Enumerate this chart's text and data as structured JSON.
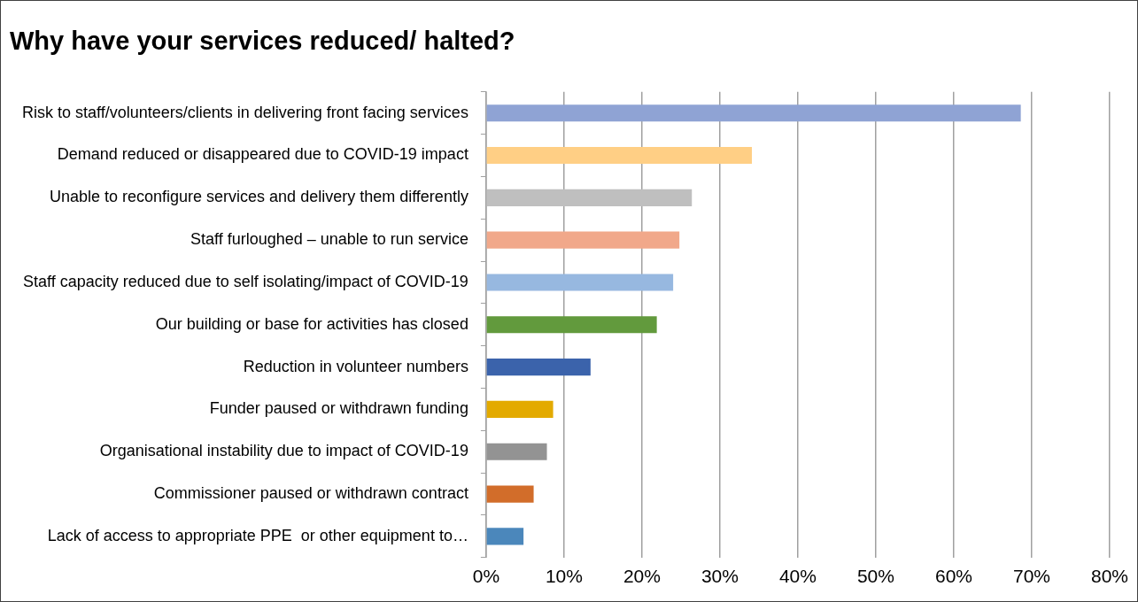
{
  "chart_data": {
    "type": "bar",
    "orientation": "horizontal",
    "title": "Why have your services reduced/ halted?",
    "categories": [
      "Risk to staff/volunteers/clients in delivering front facing services",
      "Demand reduced or disappeared due to COVID-19 impact",
      "Unable to reconfigure services and delivery them differently",
      "Staff furloughed – unable to run service",
      "Staff capacity reduced due to self isolating/impact of COVID-19",
      "Our building or base for activities has closed",
      "Reduction in volunteer numbers",
      "Funder paused or withdrawn funding",
      "Organisational instability due to impact of COVID-19",
      "Commissioner paused or withdrawn contract",
      "Lack of access to appropriate PPE  or other equipment to…"
    ],
    "values": [
      68.6,
      34.1,
      26.4,
      24.8,
      24.0,
      21.9,
      13.4,
      8.6,
      7.8,
      6.1,
      4.8
    ],
    "colors": [
      "#8fa3d4",
      "#ffcf85",
      "#bfbfbf",
      "#f1a88a",
      "#97b8e0",
      "#629a3d",
      "#3b63ab",
      "#e3aa00",
      "#939393",
      "#d26d2a",
      "#4b87bb"
    ],
    "xlim": [
      0,
      80
    ],
    "xticks": [
      {
        "value": 0,
        "label": "0%"
      },
      {
        "value": 10,
        "label": "10%"
      },
      {
        "value": 20,
        "label": "20%"
      },
      {
        "value": 30,
        "label": "30%"
      },
      {
        "value": 40,
        "label": "40%"
      },
      {
        "value": 50,
        "label": "50%"
      },
      {
        "value": 60,
        "label": "60%"
      },
      {
        "value": 70,
        "label": "70%"
      },
      {
        "value": 80,
        "label": "80%"
      }
    ],
    "grid": "x",
    "legend": false
  }
}
